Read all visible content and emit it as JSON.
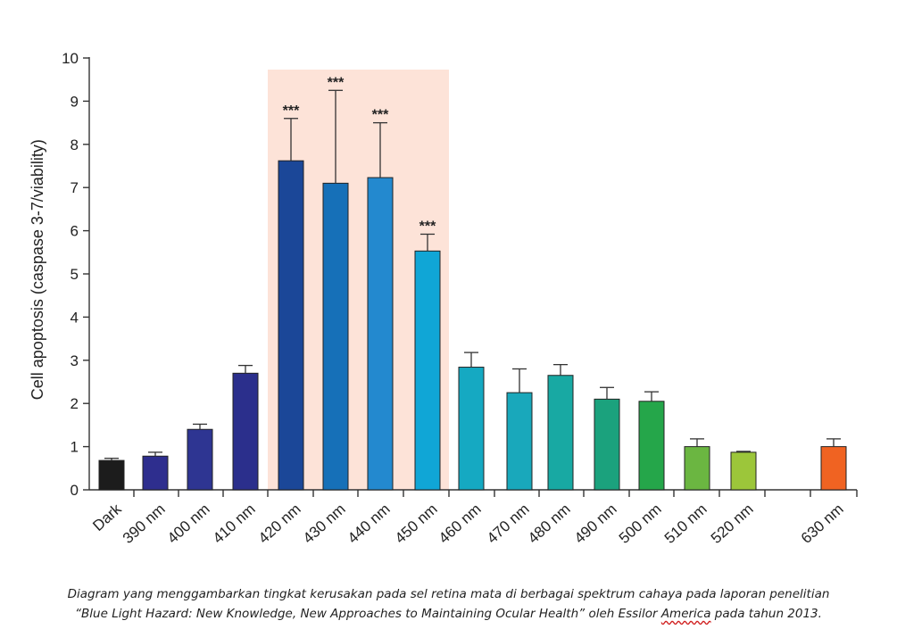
{
  "chart_data": {
    "type": "bar",
    "title": "",
    "xlabel": "",
    "ylabel": "Cell apoptosis (caspase 3-7/viability)",
    "ylim": [
      0,
      10
    ],
    "yticks": [
      0,
      1,
      2,
      3,
      4,
      5,
      6,
      7,
      8,
      9,
      10
    ],
    "categories": [
      "Dark",
      "390 nm",
      "400 nm",
      "410 nm",
      "420 nm",
      "430 nm",
      "440 nm",
      "450 nm",
      "460 nm",
      "470 nm",
      "480 nm",
      "490 nm",
      "500 nm",
      "510 nm",
      "520 nm",
      "630 nm"
    ],
    "values": [
      0.68,
      0.78,
      1.4,
      2.7,
      7.62,
      7.1,
      7.23,
      5.53,
      2.84,
      2.25,
      2.65,
      2.1,
      2.05,
      1.0,
      0.87,
      1.0
    ],
    "error_upper": [
      0.73,
      0.87,
      1.52,
      2.88,
      8.6,
      9.25,
      8.5,
      5.92,
      3.18,
      2.8,
      2.9,
      2.37,
      2.27,
      1.18,
      0.89,
      1.18
    ],
    "significance": [
      "",
      "",
      "",
      "",
      "***",
      "***",
      "***",
      "***",
      "",
      "",
      "",
      "",
      "",
      "",
      "",
      ""
    ],
    "bar_colors": [
      "#1c1c1c",
      "#2e2e8e",
      "#2e3592",
      "#2b2f8c",
      "#1b4798",
      "#1670b8",
      "#2389cf",
      "#10a6d6",
      "#15a9c2",
      "#19a8bb",
      "#18a9a3",
      "#1ba27d",
      "#25a64a",
      "#6bb641",
      "#9cc63a",
      "#f06322"
    ],
    "highlight_range": [
      "420 nm",
      "450 nm"
    ],
    "highlight_color": "#fde3d8",
    "grid": false,
    "legend": "none"
  },
  "caption": {
    "line1": "Diagram yang menggambarkan tingkat kerusakan pada sel retina mata di berbagai spektrum cahaya pada laporan penelitian",
    "line2_before": "“Blue Light Hazard: New Knowledge, New Approaches to Maintaining Ocular Health” oleh Essilor ",
    "line2_marked": "America",
    "line2_after": " pada tahun 2013."
  }
}
